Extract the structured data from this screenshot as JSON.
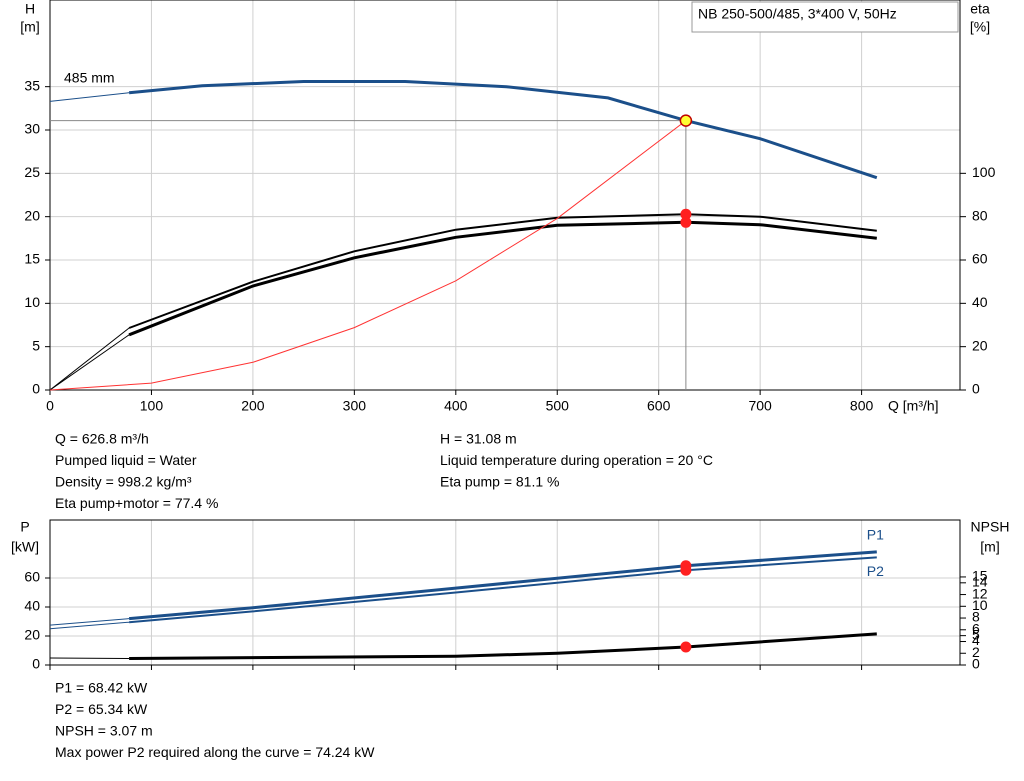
{
  "chart_data": [
    {
      "type": "line",
      "title": "NB 250-500/485, 3*400 V, 50Hz",
      "y_label": "H",
      "y_unit": "[m]",
      "y2_label": "eta",
      "y2_unit": "[%]",
      "x_label": "Q [m³/h]",
      "xlim": [
        0,
        897
      ],
      "xticks": [
        0,
        100,
        200,
        300,
        400,
        500,
        600,
        700,
        800
      ],
      "ylim": [
        0,
        45
      ],
      "yticks": [
        0,
        5,
        10,
        15,
        20,
        25,
        30,
        35
      ],
      "y2lim": [
        0,
        180
      ],
      "y2ticks": [
        0,
        20,
        40,
        60,
        80,
        100
      ],
      "grid": true,
      "series": [
        {
          "name": "485 mm",
          "color": "#1b4f8a",
          "width": 3,
          "x": [
            78,
            150,
            250,
            350,
            450,
            550,
            626.8,
            700,
            815
          ],
          "values": [
            34.3,
            35.1,
            35.6,
            35.6,
            35.0,
            33.7,
            31.08,
            29.0,
            24.5
          ]
        },
        {
          "color": "#1b4f8a",
          "width": 1,
          "x": [
            0,
            78
          ],
          "values": [
            33.3,
            34.3
          ]
        },
        {
          "color": "#000000",
          "width": 2,
          "axis": "y2",
          "x": [
            78,
            200,
            300,
            400,
            500,
            626.8,
            700,
            815
          ],
          "values": [
            28.6,
            50,
            64,
            74,
            79.5,
            81.1,
            80,
            73.5
          ]
        },
        {
          "color": "#000000",
          "width": 3,
          "axis": "y2",
          "x": [
            78,
            200,
            300,
            400,
            500,
            626.8,
            700,
            815
          ],
          "values": [
            25.5,
            48,
            61,
            70.5,
            76,
            77.4,
            76.3,
            70
          ]
        },
        {
          "color": "#000000",
          "width": 1,
          "axis": "y2",
          "x": [
            0,
            78
          ],
          "values": [
            0,
            28.6
          ]
        },
        {
          "color": "#000000",
          "width": 1,
          "axis": "y2",
          "x": [
            0,
            78
          ],
          "values": [
            0,
            25.5
          ]
        },
        {
          "color": "#ff3333",
          "width": 1,
          "x": [
            0,
            100,
            200,
            300,
            400,
            500,
            626.8
          ],
          "values": [
            0,
            0.8,
            3.2,
            7.2,
            12.6,
            19.8,
            31.08
          ]
        }
      ],
      "markers": [
        {
          "x": 626.8,
          "y": 31.08,
          "color": "#ffff33",
          "guide": true
        },
        {
          "x": 626.8,
          "y": 81.1,
          "color": "#ff2020",
          "axis": "y2"
        },
        {
          "x": 626.8,
          "y": 77.4,
          "color": "#ff2020",
          "axis": "y2"
        }
      ],
      "readouts": [
        [
          "Q = 626.8 m³/h",
          "Pumped liquid = Water",
          "Density = 998.2 kg/m³",
          "Eta pump+motor = 77.4 %"
        ],
        [
          "H = 31.08 m",
          "Liquid temperature during operation = 20 °C",
          "Eta pump = 81.1 %"
        ]
      ]
    },
    {
      "type": "line",
      "y_label": "P",
      "y_unit": "[kW]",
      "y2_label": "NPSH",
      "y2_unit": "[m]",
      "xlim": [
        0,
        897
      ],
      "xticks": [
        0,
        100,
        200,
        300,
        400,
        500,
        600,
        700,
        800
      ],
      "ylim": [
        0,
        100
      ],
      "yticks": [
        0,
        20,
        40,
        60
      ],
      "y2lim": [
        0,
        24.7
      ],
      "y2ticks": [
        0,
        2,
        4,
        5,
        6,
        8,
        10,
        12,
        14,
        15
      ],
      "grid": true,
      "series": [
        {
          "name": "P1",
          "color": "#1b4f8a",
          "width": 3,
          "x": [
            78,
            200,
            400,
            626.8,
            815
          ],
          "values": [
            32,
            39.5,
            53,
            68.42,
            78
          ]
        },
        {
          "name": "P2",
          "color": "#1b4f8a",
          "width": 2,
          "x": [
            78,
            200,
            400,
            626.8,
            815
          ],
          "values": [
            29.5,
            37,
            50,
            65.34,
            74.2
          ]
        },
        {
          "color": "#1b4f8a",
          "width": 1,
          "x": [
            0,
            78
          ],
          "values": [
            27.5,
            32
          ]
        },
        {
          "color": "#1b4f8a",
          "width": 1,
          "x": [
            0,
            78
          ],
          "values": [
            25,
            29.5
          ]
        },
        {
          "color": "#000000",
          "width": 3,
          "axis": "y2",
          "x": [
            78,
            400,
            500,
            626.8,
            815
          ],
          "values": [
            1.1,
            1.5,
            2.0,
            3.07,
            5.3
          ]
        },
        {
          "color": "#000000",
          "width": 1,
          "axis": "y2",
          "x": [
            0,
            78
          ],
          "values": [
            1.2,
            1.1
          ]
        }
      ],
      "markers": [
        {
          "x": 626.8,
          "y": 68.42,
          "color": "#ff2020"
        },
        {
          "x": 626.8,
          "y": 65.34,
          "color": "#ff2020"
        },
        {
          "x": 626.8,
          "y": 3.07,
          "color": "#ff2020",
          "axis": "y2"
        }
      ],
      "readouts": [
        [
          "P1 = 68.42 kW",
          "P2 = 65.34 kW",
          "NPSH = 3.07 m",
          "Max power P2 required along the curve = 74.24 kW"
        ]
      ]
    }
  ]
}
